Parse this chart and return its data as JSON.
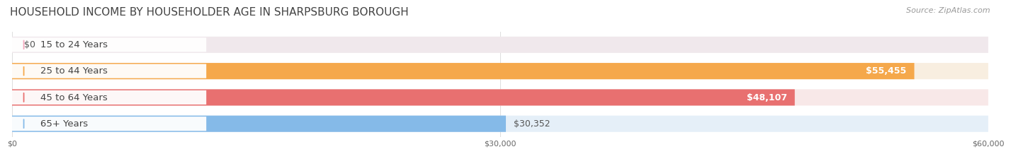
{
  "title": "HOUSEHOLD INCOME BY HOUSEHOLDER AGE IN SHARPSBURG BOROUGH",
  "source": "Source: ZipAtlas.com",
  "categories": [
    "15 to 24 Years",
    "25 to 44 Years",
    "45 to 64 Years",
    "65+ Years"
  ],
  "values": [
    0,
    55455,
    48107,
    30352
  ],
  "labels": [
    "$0",
    "$55,455",
    "$48,107",
    "$30,352"
  ],
  "label_inside": [
    false,
    true,
    true,
    false
  ],
  "bar_colors": [
    "#F5A8BE",
    "#F5A84B",
    "#E87070",
    "#85BAE8"
  ],
  "bar_bg_colors": [
    "#F0E8EC",
    "#F8EEE0",
    "#F8E8E8",
    "#E5EFF8"
  ],
  "dot_colors": [
    "#F5A8BE",
    "#F5A84B",
    "#E87070",
    "#85BAE8"
  ],
  "xlim": [
    0,
    60000
  ],
  "xticks": [
    0,
    30000,
    60000
  ],
  "xticklabels": [
    "$0",
    "$30,000",
    "$60,000"
  ],
  "background_color": "#FFFFFF",
  "title_fontsize": 11,
  "source_fontsize": 8,
  "label_fontsize": 9,
  "category_fontsize": 9.5
}
